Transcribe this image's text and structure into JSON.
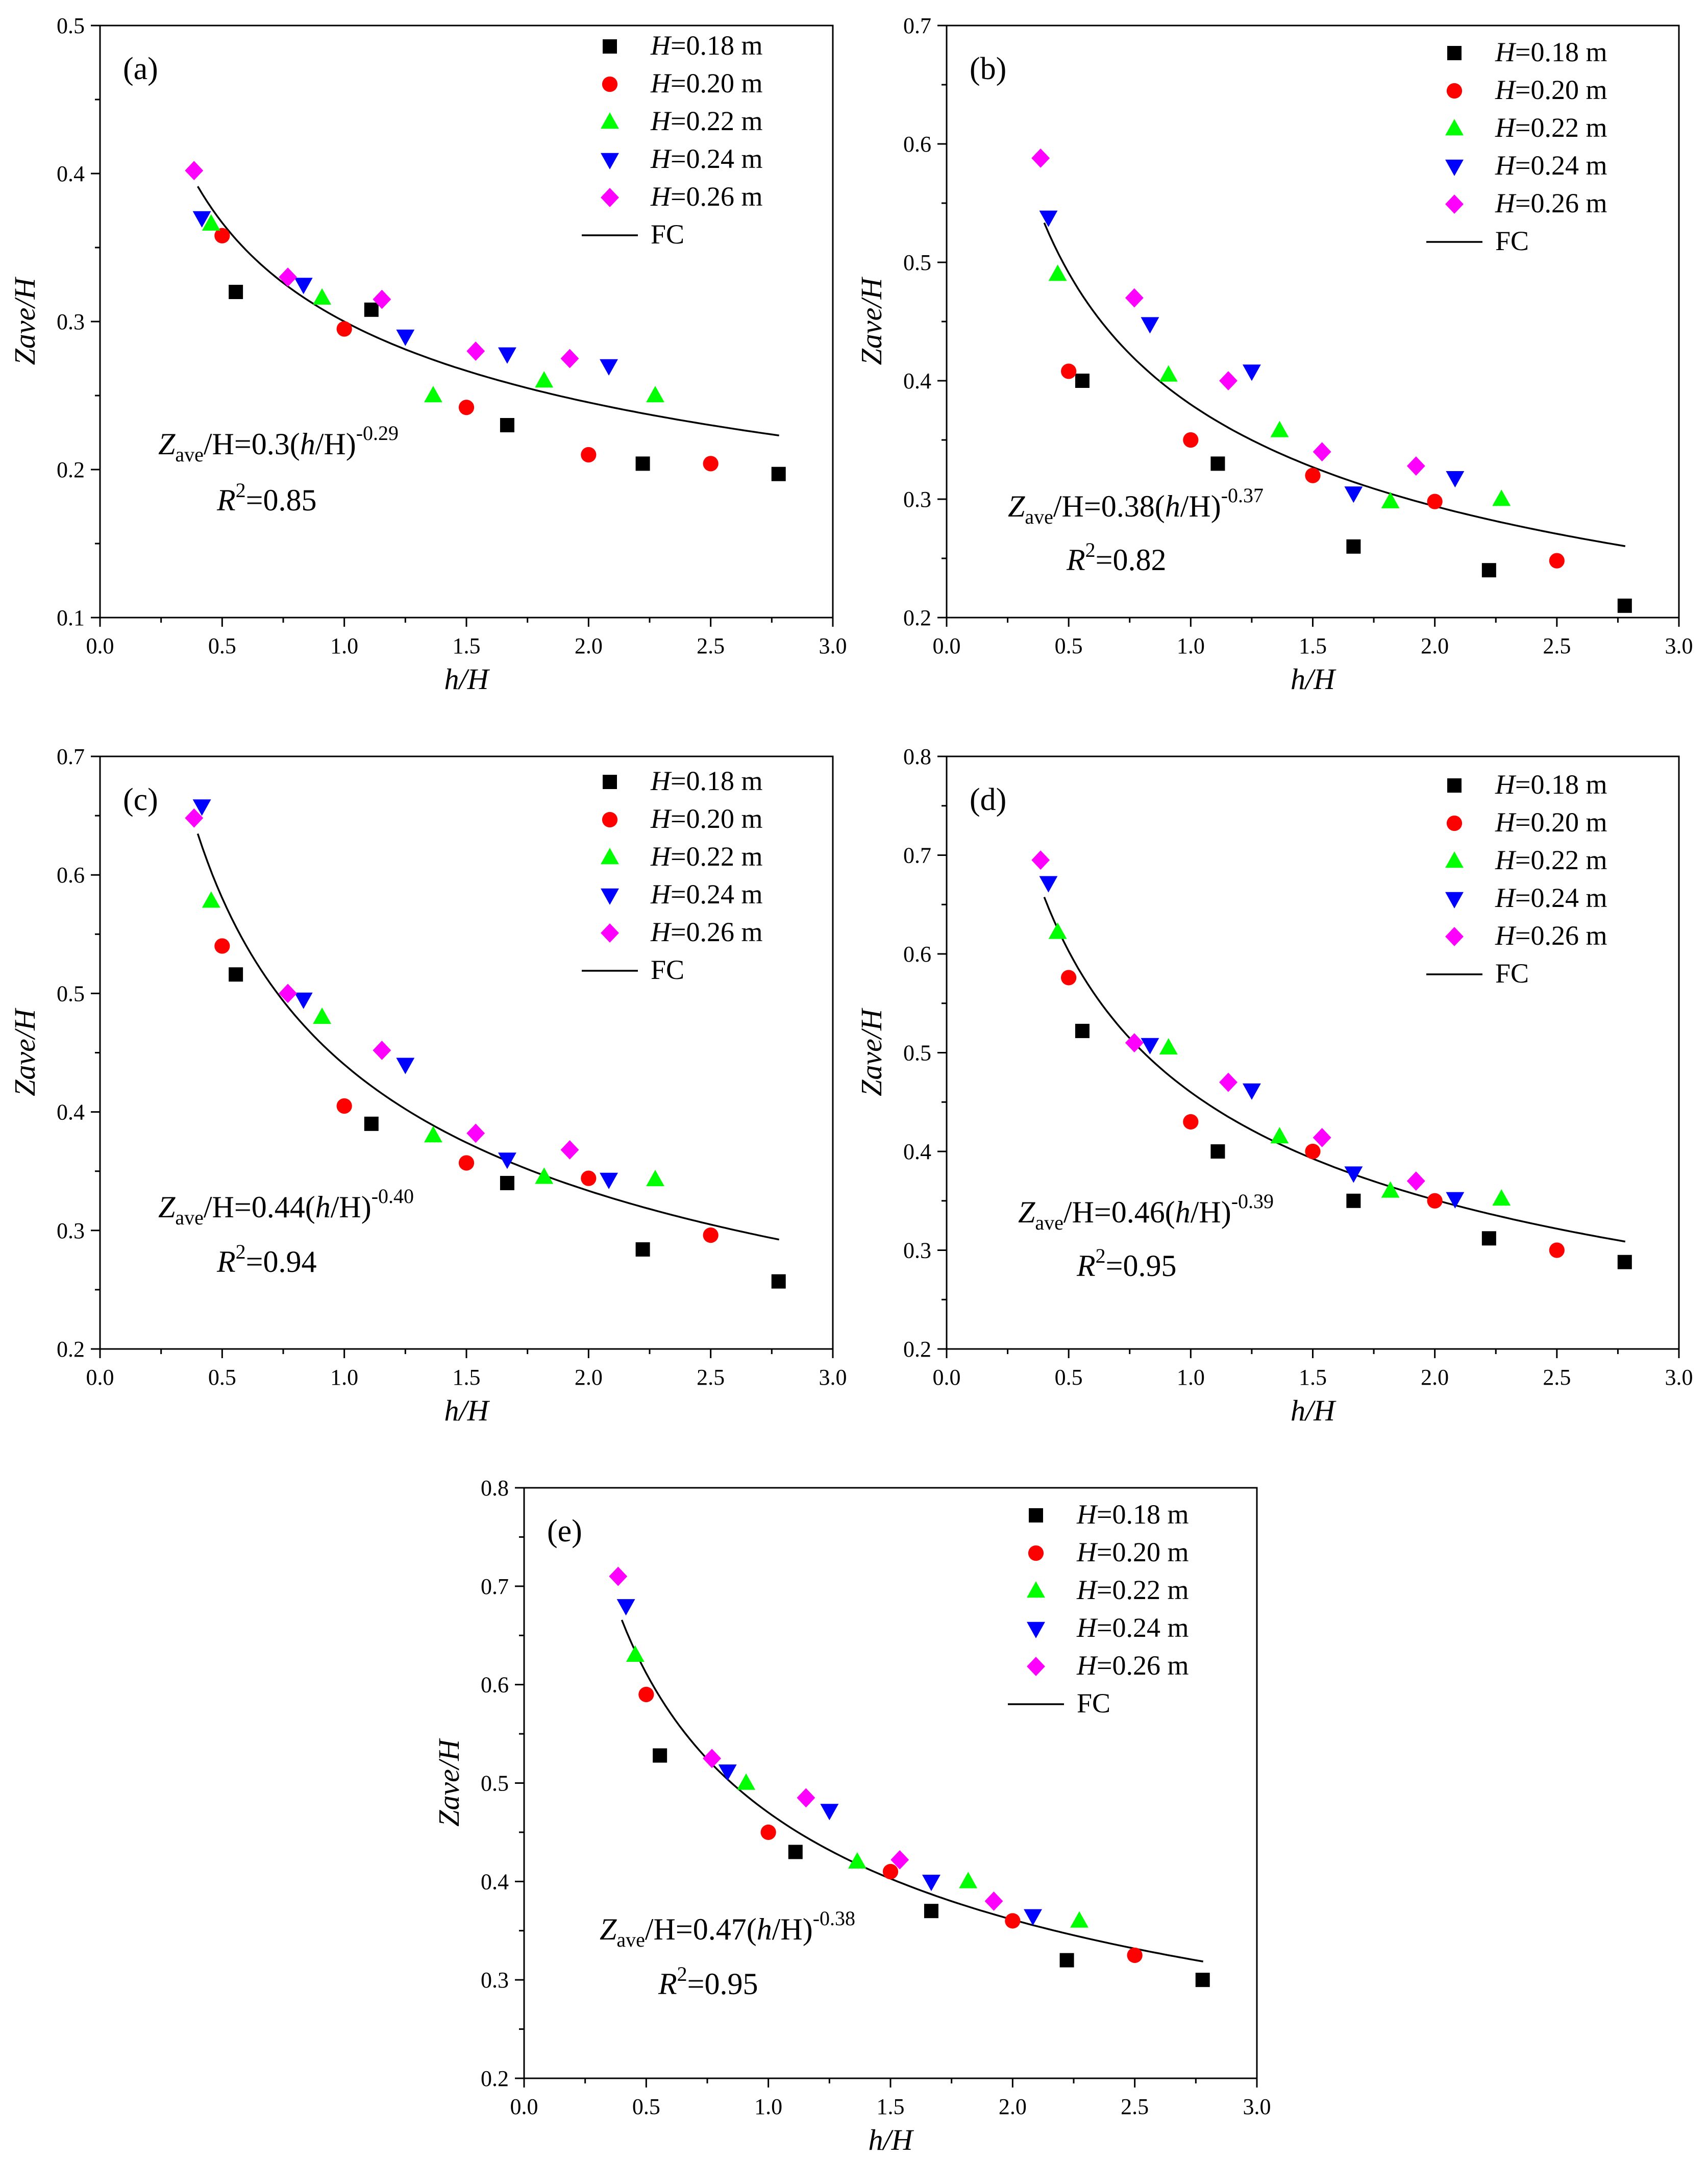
{
  "figure": {
    "series_style": [
      {
        "name": "H=0.18 m",
        "var": "H",
        "value_text": "=0.18 m",
        "marker": "square",
        "color": "#000000"
      },
      {
        "name": "H=0.20 m",
        "var": "H",
        "value_text": "=0.20 m",
        "marker": "circle",
        "color": "#ff0000"
      },
      {
        "name": "H=0.22 m",
        "var": "H",
        "value_text": "=0.22 m",
        "marker": "triangle-up",
        "color": "#00ff00"
      },
      {
        "name": "H=0.24 m",
        "var": "H",
        "value_text": "=0.24 m",
        "marker": "triangle-down",
        "color": "#0000ff"
      },
      {
        "name": "H=0.26 m",
        "var": "H",
        "value_text": "=0.26 m",
        "marker": "diamond",
        "color": "#ff00ff"
      }
    ],
    "fit_legend_label": "FC",
    "fit_color": "#000000"
  },
  "chart_data": [
    {
      "panel": "(a)",
      "type": "scatter",
      "xlabel": "h/H",
      "ylabel": "Zave/H",
      "xlim": [
        0.0,
        3.0
      ],
      "ylim": [
        0.1,
        0.5
      ],
      "x_ticks": [
        "0.0",
        "0.5",
        "1.0",
        "1.5",
        "2.0",
        "2.5",
        "3.0"
      ],
      "y_ticks": [
        "0.1",
        "0.2",
        "0.3",
        "0.4",
        "0.5"
      ],
      "series": [
        {
          "name": "H=0.18 m",
          "x": [
            0.556,
            1.111,
            1.667,
            2.222,
            2.778
          ],
          "y": [
            0.32,
            0.308,
            0.23,
            0.204,
            0.197
          ]
        },
        {
          "name": "H=0.20 m",
          "x": [
            0.5,
            1.0,
            1.5,
            2.0,
            2.5
          ],
          "y": [
            0.358,
            0.295,
            0.242,
            0.21,
            0.204
          ]
        },
        {
          "name": "H=0.22 m",
          "x": [
            0.455,
            0.909,
            1.364,
            1.818,
            2.273
          ],
          "y": [
            0.366,
            0.316,
            0.25,
            0.26,
            0.25
          ]
        },
        {
          "name": "H=0.24 m",
          "x": [
            0.417,
            0.833,
            1.25,
            1.667,
            2.083
          ],
          "y": [
            0.37,
            0.325,
            0.29,
            0.278,
            0.27
          ]
        },
        {
          "name": "H=0.26 m",
          "x": [
            0.385,
            0.769,
            1.154,
            1.538,
            1.923
          ],
          "y": [
            0.402,
            0.33,
            0.315,
            0.28,
            0.275
          ]
        }
      ],
      "fit": {
        "label": "FC",
        "a": 0.3,
        "b": -0.29,
        "x_range": [
          0.4,
          2.78
        ]
      },
      "equation": {
        "lhs_main": "Z",
        "lhs_sub": "ave",
        "lhs_mid": "/H=0.3(",
        "var_h": "h",
        "rhs_mid": "/H)",
        "exponent": "-0.29"
      },
      "r2": {
        "var": "R",
        "sup": "2",
        "value": "=0.85"
      }
    },
    {
      "panel": "(b)",
      "type": "scatter",
      "xlabel": "h/H",
      "ylabel": "Zave/H",
      "xlim": [
        0.0,
        3.0
      ],
      "ylim": [
        0.2,
        0.7
      ],
      "x_ticks": [
        "0.0",
        "0.5",
        "1.0",
        "1.5",
        "2.0",
        "2.5",
        "3.0"
      ],
      "y_ticks": [
        "0.2",
        "0.3",
        "0.4",
        "0.5",
        "0.6",
        "0.7"
      ],
      "series": [
        {
          "name": "H=0.18 m",
          "x": [
            0.556,
            1.111,
            1.667,
            2.222,
            2.778
          ],
          "y": [
            0.4,
            0.33,
            0.26,
            0.24,
            0.21
          ]
        },
        {
          "name": "H=0.20 m",
          "x": [
            0.5,
            1.0,
            1.5,
            2.0,
            2.5
          ],
          "y": [
            0.408,
            0.35,
            0.32,
            0.298,
            0.248
          ]
        },
        {
          "name": "H=0.22 m",
          "x": [
            0.455,
            0.909,
            1.364,
            1.818,
            2.273
          ],
          "y": [
            0.49,
            0.405,
            0.358,
            0.298,
            0.3
          ]
        },
        {
          "name": "H=0.24 m",
          "x": [
            0.417,
            0.833,
            1.25,
            1.667,
            2.083
          ],
          "y": [
            0.538,
            0.448,
            0.408,
            0.305,
            0.318
          ]
        },
        {
          "name": "H=0.26 m",
          "x": [
            0.385,
            0.769,
            1.154,
            1.538,
            1.923
          ],
          "y": [
            0.588,
            0.47,
            0.4,
            0.34,
            0.328
          ]
        }
      ],
      "fit": {
        "label": "FC",
        "a": 0.38,
        "b": -0.37,
        "x_range": [
          0.4,
          2.78
        ]
      },
      "equation": {
        "lhs_main": "Z",
        "lhs_sub": "ave",
        "lhs_mid": "/H=0.38(",
        "var_h": "h",
        "rhs_mid": "/H)",
        "exponent": "-0.37"
      },
      "r2": {
        "var": "R",
        "sup": "2",
        "value": "=0.82"
      }
    },
    {
      "panel": "(c)",
      "type": "scatter",
      "xlabel": "h/H",
      "ylabel": "Zave/H",
      "xlim": [
        0.0,
        3.0
      ],
      "ylim": [
        0.2,
        0.7
      ],
      "x_ticks": [
        "0.0",
        "0.5",
        "1.0",
        "1.5",
        "2.0",
        "2.5",
        "3.0"
      ],
      "y_ticks": [
        "0.2",
        "0.3",
        "0.4",
        "0.5",
        "0.6",
        "0.7"
      ],
      "series": [
        {
          "name": "H=0.18 m",
          "x": [
            0.556,
            1.111,
            1.667,
            2.222,
            2.778
          ],
          "y": [
            0.516,
            0.39,
            0.34,
            0.284,
            0.257
          ]
        },
        {
          "name": "H=0.20 m",
          "x": [
            0.5,
            1.0,
            1.5,
            2.0,
            2.5
          ],
          "y": [
            0.54,
            0.405,
            0.357,
            0.344,
            0.296
          ]
        },
        {
          "name": "H=0.22 m",
          "x": [
            0.455,
            0.909,
            1.364,
            1.818,
            2.273
          ],
          "y": [
            0.578,
            0.48,
            0.38,
            0.345,
            0.343
          ]
        },
        {
          "name": "H=0.24 m",
          "x": [
            0.417,
            0.833,
            1.25,
            1.667,
            2.083
          ],
          "y": [
            0.658,
            0.495,
            0.44,
            0.36,
            0.343
          ]
        },
        {
          "name": "H=0.26 m",
          "x": [
            0.385,
            0.769,
            1.154,
            1.538,
            1.923
          ],
          "y": [
            0.648,
            0.5,
            0.452,
            0.382,
            0.368
          ]
        }
      ],
      "fit": {
        "label": "FC",
        "a": 0.44,
        "b": -0.4,
        "x_range": [
          0.4,
          2.78
        ]
      },
      "equation": {
        "lhs_main": "Z",
        "lhs_sub": "ave",
        "lhs_mid": "/H=0.44(",
        "var_h": "h",
        "rhs_mid": "/H)",
        "exponent": "-0.40"
      },
      "r2": {
        "var": "R",
        "sup": "2",
        "value": "=0.94"
      }
    },
    {
      "panel": "(d)",
      "type": "scatter",
      "xlabel": "h/H",
      "ylabel": "Zave/H",
      "xlim": [
        0.0,
        3.0
      ],
      "ylim": [
        0.2,
        0.8
      ],
      "x_ticks": [
        "0.0",
        "0.5",
        "1.0",
        "1.5",
        "2.0",
        "2.5",
        "3.0"
      ],
      "y_ticks": [
        "0.2",
        "0.3",
        "0.4",
        "0.5",
        "0.6",
        "0.7",
        "0.8"
      ],
      "series": [
        {
          "name": "H=0.18 m",
          "x": [
            0.556,
            1.111,
            1.667,
            2.222,
            2.778
          ],
          "y": [
            0.522,
            0.4,
            0.35,
            0.312,
            0.288
          ]
        },
        {
          "name": "H=0.20 m",
          "x": [
            0.5,
            1.0,
            1.5,
            2.0,
            2.5
          ],
          "y": [
            0.576,
            0.43,
            0.4,
            0.35,
            0.3
          ]
        },
        {
          "name": "H=0.22 m",
          "x": [
            0.455,
            0.909,
            1.364,
            1.818,
            2.273
          ],
          "y": [
            0.622,
            0.505,
            0.415,
            0.36,
            0.352
          ]
        },
        {
          "name": "H=0.24 m",
          "x": [
            0.417,
            0.833,
            1.25,
            1.667,
            2.083
          ],
          "y": [
            0.672,
            0.508,
            0.462,
            0.378,
            0.352
          ]
        },
        {
          "name": "H=0.26 m",
          "x": [
            0.385,
            0.769,
            1.154,
            1.538,
            1.923
          ],
          "y": [
            0.695,
            0.51,
            0.47,
            0.414,
            0.37
          ]
        }
      ],
      "fit": {
        "label": "FC",
        "a": 0.46,
        "b": -0.39,
        "x_range": [
          0.4,
          2.78
        ]
      },
      "equation": {
        "lhs_main": "Z",
        "lhs_sub": "ave",
        "lhs_mid": "/H=0.46(",
        "var_h": "h",
        "rhs_mid": "/H)",
        "exponent": "-0.39"
      },
      "r2": {
        "var": "R",
        "sup": "2",
        "value": "=0.95"
      }
    },
    {
      "panel": "(e)",
      "type": "scatter",
      "xlabel": "h/H",
      "ylabel": "Zave/H",
      "xlim": [
        0.0,
        3.0
      ],
      "ylim": [
        0.2,
        0.8
      ],
      "x_ticks": [
        "0.0",
        "0.5",
        "1.0",
        "1.5",
        "2.0",
        "2.5",
        "3.0"
      ],
      "y_ticks": [
        "0.2",
        "0.3",
        "0.4",
        "0.5",
        "0.6",
        "0.7",
        "0.8"
      ],
      "series": [
        {
          "name": "H=0.18 m",
          "x": [
            0.556,
            1.111,
            1.667,
            2.222,
            2.778
          ],
          "y": [
            0.528,
            0.43,
            0.37,
            0.32,
            0.3
          ]
        },
        {
          "name": "H=0.20 m",
          "x": [
            0.5,
            1.0,
            1.5,
            2.0,
            2.5
          ],
          "y": [
            0.59,
            0.45,
            0.41,
            0.36,
            0.325
          ]
        },
        {
          "name": "H=0.22 m",
          "x": [
            0.455,
            0.909,
            1.364,
            1.818,
            2.273
          ],
          "y": [
            0.63,
            0.5,
            0.42,
            0.4,
            0.36
          ]
        },
        {
          "name": "H=0.24 m",
          "x": [
            0.417,
            0.833,
            1.25,
            1.667,
            2.083
          ],
          "y": [
            0.68,
            0.512,
            0.472,
            0.4,
            0.365
          ]
        },
        {
          "name": "H=0.26 m",
          "x": [
            0.385,
            0.769,
            1.154,
            1.538,
            1.923
          ],
          "y": [
            0.71,
            0.525,
            0.485,
            0.422,
            0.38
          ]
        }
      ],
      "fit": {
        "label": "FC",
        "a": 0.47,
        "b": -0.38,
        "x_range": [
          0.4,
          2.78
        ]
      },
      "equation": {
        "lhs_main": "Z",
        "lhs_sub": "ave",
        "lhs_mid": "/H=0.47(",
        "var_h": "h",
        "rhs_mid": "/H)",
        "exponent": "-0.38"
      },
      "r2": {
        "var": "R",
        "sup": "2",
        "value": "=0.95"
      }
    }
  ]
}
